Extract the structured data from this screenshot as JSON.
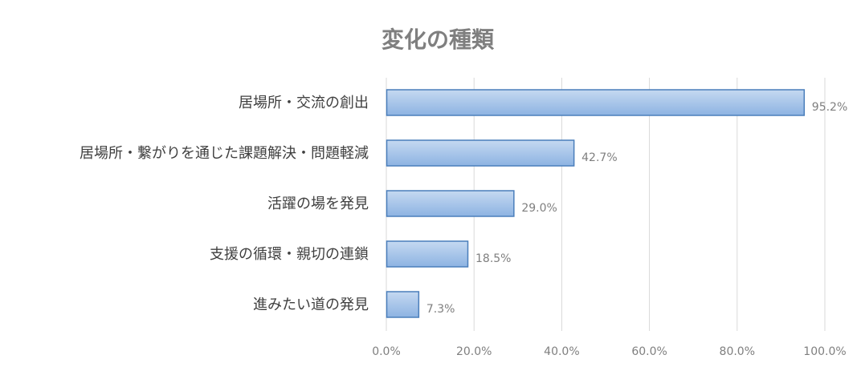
{
  "chart_data": {
    "type": "bar",
    "orientation": "horizontal",
    "title": "変化の種類",
    "categories": [
      "居場所・交流の創出",
      "居場所・繋がりを通じた課題解決・問題軽減",
      "活躍の場を発見",
      "支援の循環・親切の連鎖",
      "進みたい道の発見"
    ],
    "values": [
      95.2,
      42.7,
      29.0,
      18.5,
      7.3
    ],
    "value_labels": [
      "95.2%",
      "42.7%",
      "29.0%",
      "18.5%",
      "7.3%"
    ],
    "xlim": [
      0,
      100
    ],
    "x_ticks": [
      0,
      20,
      40,
      60,
      80,
      100
    ],
    "x_tick_labels": [
      "0.0%",
      "20.0%",
      "40.0%",
      "60.0%",
      "80.0%",
      "100.0%"
    ],
    "grid": "vertical",
    "legend": "none",
    "colors": {
      "bar_fill_top": "#c5d9f1",
      "bar_fill_bottom": "#8db3e2",
      "bar_stroke": "#4a7ebb",
      "grid": "#d9d9d9",
      "title": "#7f7f7f"
    }
  }
}
